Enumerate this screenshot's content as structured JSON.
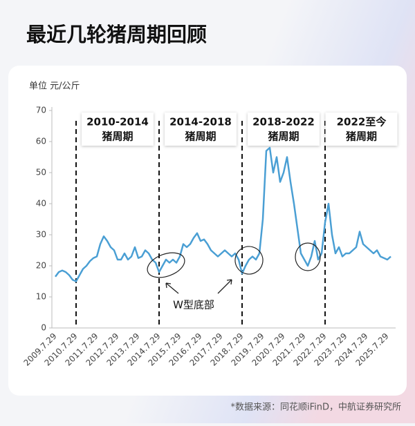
{
  "header": {
    "title": "最近几轮猪周期回顾"
  },
  "chart_data": {
    "type": "line",
    "y_label": "单位 元/公斤",
    "categories": [
      "2009.7.29",
      null,
      null,
      null,
      null,
      null,
      "2010.7.29",
      null,
      null,
      null,
      null,
      null,
      "2011.7.29",
      null,
      null,
      null,
      null,
      null,
      "2012.7.29",
      null,
      null,
      null,
      null,
      null,
      "2013.7.29",
      null,
      null,
      null,
      null,
      null,
      "2014.7.29",
      null,
      null,
      null,
      null,
      null,
      "2015.7.29",
      null,
      null,
      null,
      null,
      null,
      "2016.7.29",
      null,
      null,
      null,
      null,
      null,
      "2017.7.29",
      null,
      null,
      null,
      null,
      null,
      "2018.7.29",
      null,
      null,
      null,
      null,
      null,
      "2019.7.29",
      null,
      null,
      null,
      null,
      null,
      "2020.7.29",
      null,
      null,
      null,
      null,
      null,
      "2021.7.29",
      null,
      null,
      null,
      null,
      null,
      "2022.7.29",
      null,
      null,
      null,
      null,
      null,
      "2023.7.29",
      null,
      null,
      null,
      null,
      null,
      "2024.7.29",
      null,
      null,
      null,
      null,
      null,
      "2025.7.29",
      null
    ],
    "series": [
      {
        "color": "#4a9fd4",
        "values": [
          16.5,
          18,
          18.5,
          18,
          17,
          15.5,
          15,
          17,
          19,
          20,
          21.5,
          22.5,
          23,
          27,
          29.5,
          28,
          26,
          25,
          22,
          22,
          24,
          22,
          23,
          26,
          22.5,
          23,
          25,
          24,
          22,
          21,
          18,
          20,
          22,
          21,
          22,
          21,
          23,
          27,
          26,
          27,
          29,
          30.5,
          28,
          28.5,
          27,
          25,
          24,
          23,
          24,
          25,
          24,
          23,
          24,
          22,
          17.5,
          20,
          22,
          23,
          22,
          24,
          35,
          57,
          58,
          50,
          55,
          47,
          50,
          55,
          47,
          40,
          32,
          24,
          22,
          20,
          23,
          28,
          22,
          24,
          34,
          40,
          30,
          24,
          26,
          23,
          24,
          24,
          25,
          26,
          31,
          27,
          26,
          25,
          24,
          25,
          23,
          22.5,
          22,
          23
        ]
      }
    ],
    "ylim": [
      0,
      70
    ],
    "yticks": [
      0,
      10,
      20,
      30,
      40,
      50,
      60,
      70
    ],
    "annotations": [
      [
        "2010-2014",
        "猪周期"
      ],
      [
        "2014-2018",
        "猪周期"
      ],
      [
        "2018-2022",
        "猪周期"
      ],
      [
        "2022至今",
        "猪周期"
      ]
    ],
    "w_label": "W型底部"
  },
  "footer": {
    "source": "*数据来源：同花顺iFinD，中航证券研究所"
  }
}
